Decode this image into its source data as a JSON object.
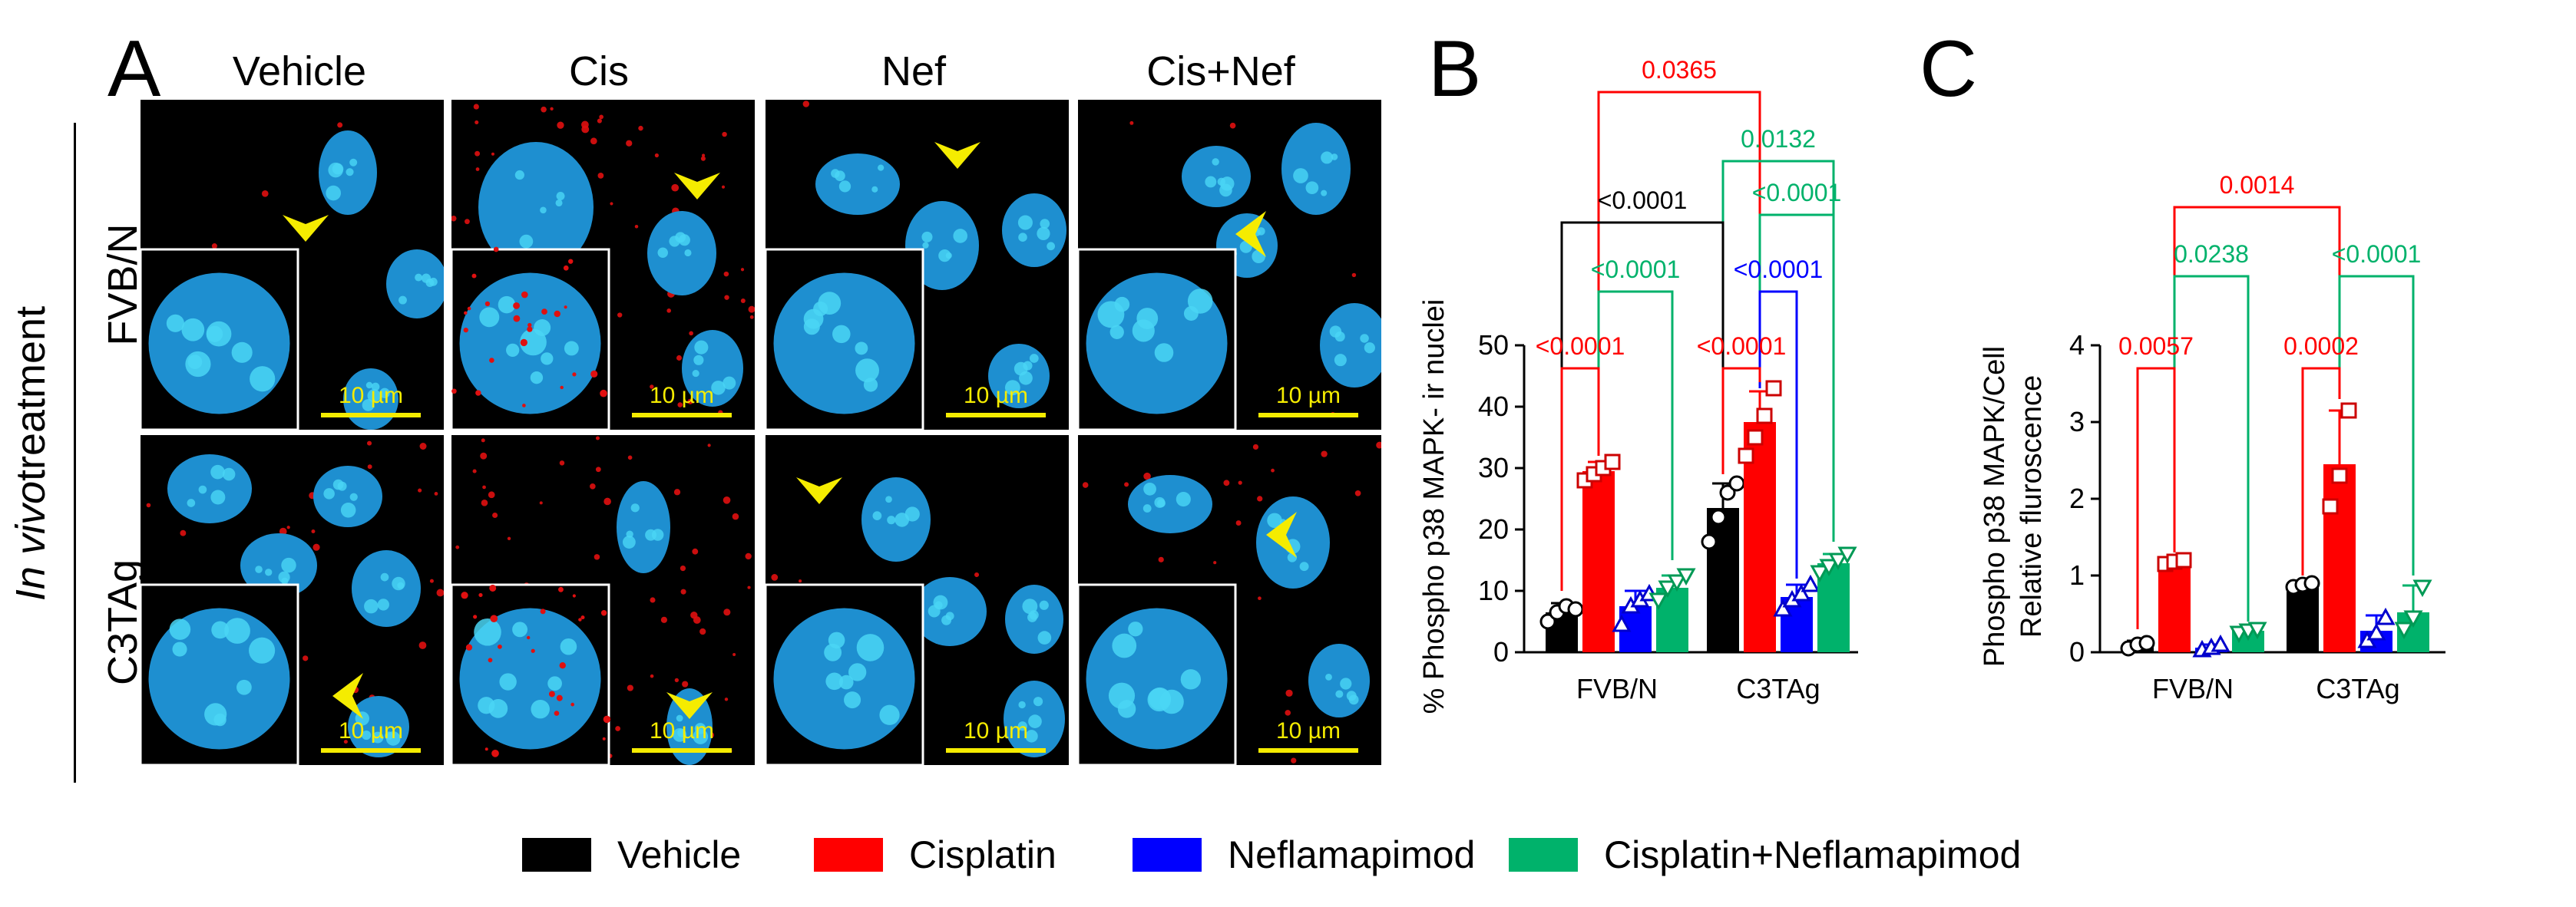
{
  "figure": {
    "panel_letters": {
      "a": "A",
      "b": "B",
      "c": "C"
    },
    "columns": [
      "Vehicle",
      "Cis",
      "Nef",
      "Cis+Nef"
    ],
    "rows": [
      "FVB/N",
      "C3TAg"
    ],
    "side_label_italic": "In vivo",
    "side_label_rest": "treatment",
    "scale_bar_label": "10 µm"
  },
  "legend": [
    {
      "label": "Vehicle",
      "color": "#000000"
    },
    {
      "label": "Cisplatin",
      "color": "#ff0000"
    },
    {
      "label": "Neflamapimod",
      "color": "#0000ff"
    },
    {
      "label": "Cisplatin+Neflamapimod",
      "color": "#00b26b"
    }
  ],
  "chart_data": [
    {
      "type": "bar",
      "panel": "B",
      "ylabel": "% Phospho p38 MAPK- ir nuclei",
      "categories": [
        "FVB/N",
        "C3TAg"
      ],
      "ylim": [
        0,
        50
      ],
      "yticks": [
        0,
        10,
        20,
        30,
        40,
        50
      ],
      "series": [
        {
          "name": "Vehicle",
          "color": "#000000",
          "marker": "circle",
          "values": [
            6.5,
            23.5
          ],
          "errors": [
            1.5,
            4.0
          ],
          "points": [
            [
              5.0,
              6.5,
              7.5,
              7.0
            ],
            [
              18.0,
              22.0,
              26.0,
              27.5
            ]
          ]
        },
        {
          "name": "Cisplatin",
          "color": "#ff0000",
          "marker": "square",
          "values": [
            29.5,
            37.5
          ],
          "errors": [
            1.5,
            5.0
          ],
          "points": [
            [
              28.0,
              29.0,
              30.0,
              31.0
            ],
            [
              32.0,
              35.0,
              38.5,
              43.0
            ]
          ]
        },
        {
          "name": "Neflamapimod",
          "color": "#0000ff",
          "marker": "triangle",
          "values": [
            7.5,
            9.0
          ],
          "errors": [
            2.5,
            2.0
          ],
          "points": [
            [
              4.5,
              7.5,
              8.5,
              9.5
            ],
            [
              7.0,
              8.5,
              9.5,
              11.0
            ]
          ]
        },
        {
          "name": "Cisplatin+Neflamapimod",
          "color": "#00b26b",
          "marker": "triangle-down",
          "values": [
            10.5,
            14.5
          ],
          "errors": [
            2.0,
            1.5
          ],
          "points": [
            [
              8.5,
              10.5,
              11.5,
              12.5
            ],
            [
              13.0,
              14.0,
              15.0,
              16.0
            ]
          ]
        }
      ],
      "annotations": [
        {
          "text": "0.0365",
          "color": "#ff0000"
        },
        {
          "text": "0.0132",
          "color": "#00b26b"
        },
        {
          "text": "<0.0001",
          "color": "#000000"
        },
        {
          "text": "<0.0001",
          "color": "#00b26b"
        },
        {
          "text": "<0.0001",
          "color": "#00b26b"
        },
        {
          "text": "<0.0001",
          "color": "#0000ff"
        },
        {
          "text": "<0.0001",
          "color": "#ff0000"
        },
        {
          "text": "<0.0001",
          "color": "#ff0000"
        }
      ]
    },
    {
      "type": "bar",
      "panel": "C",
      "ylabel_line1": "Phospho p38 MAPK/Cell",
      "ylabel_line2": "Relative fluroscence",
      "categories": [
        "FVB/N",
        "C3TAg"
      ],
      "ylim": [
        0,
        4
      ],
      "yticks": [
        0,
        1,
        2,
        3,
        4
      ],
      "series": [
        {
          "name": "Vehicle",
          "color": "#000000",
          "marker": "circle",
          "values": [
            0.1,
            0.88
          ],
          "errors": [
            0.05,
            0.05
          ],
          "points": [
            [
              0.05,
              0.1,
              0.12
            ],
            [
              0.85,
              0.88,
              0.9
            ]
          ]
        },
        {
          "name": "Cisplatin",
          "color": "#ff0000",
          "marker": "square",
          "values": [
            1.18,
            2.45
          ],
          "errors": [
            0.05,
            0.7
          ],
          "points": [
            [
              1.15,
              1.18,
              1.2
            ],
            [
              1.9,
              2.3,
              3.15
            ]
          ]
        },
        {
          "name": "Neflamapimod",
          "color": "#0000ff",
          "marker": "triangle",
          "values": [
            0.06,
            0.28
          ],
          "errors": [
            0.04,
            0.2
          ],
          "points": [
            [
              0.03,
              0.06,
              0.1
            ],
            [
              0.15,
              0.25,
              0.45
            ]
          ]
        },
        {
          "name": "Cisplatin+Neflamapimod",
          "color": "#00b26b",
          "marker": "triangle-down",
          "values": [
            0.28,
            0.52
          ],
          "errors": [
            0.05,
            0.35
          ],
          "points": [
            [
              0.25,
              0.28,
              0.3
            ],
            [
              0.3,
              0.45,
              0.85
            ]
          ]
        }
      ],
      "annotations": [
        {
          "text": "0.0014",
          "color": "#ff0000"
        },
        {
          "text": "0.0238",
          "color": "#00b26b"
        },
        {
          "text": "<0.0001",
          "color": "#00b26b"
        },
        {
          "text": "0.0057",
          "color": "#ff0000"
        },
        {
          "text": "0.0002",
          "color": "#ff0000"
        }
      ]
    }
  ]
}
